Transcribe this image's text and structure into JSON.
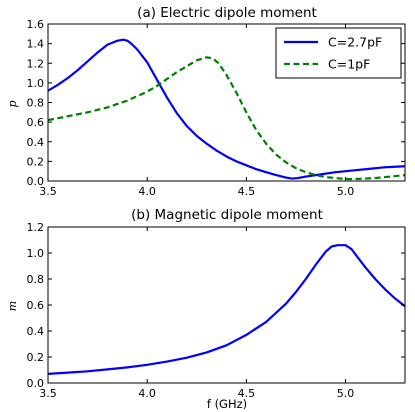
{
  "chart_data": [
    {
      "type": "line",
      "title": "(a) Electric dipole moment",
      "xlabel": "",
      "ylabel": "p",
      "xlim": [
        3.5,
        5.3
      ],
      "ylim": [
        0.0,
        1.6
      ],
      "xticks": [
        "3.5",
        "4.0",
        "4.5",
        "5.0"
      ],
      "yticks": [
        "0.0",
        "0.2",
        "0.4",
        "0.6",
        "0.8",
        "1.0",
        "1.2",
        "1.4",
        "1.6"
      ],
      "grid": false,
      "legend": "top-right",
      "series": [
        {
          "name": "C=2.7pF",
          "color": "#0000ff",
          "style": "solid",
          "x": [
            3.5,
            3.55,
            3.6,
            3.65,
            3.7,
            3.75,
            3.8,
            3.85,
            3.88,
            3.9,
            3.92,
            3.95,
            4.0,
            4.05,
            4.1,
            4.15,
            4.2,
            4.25,
            4.3,
            4.35,
            4.4,
            4.45,
            4.5,
            4.55,
            4.6,
            4.65,
            4.7,
            4.73,
            4.76,
            4.8,
            4.85,
            4.9,
            4.95,
            5.0,
            5.05,
            5.1,
            5.15,
            5.2,
            5.25,
            5.3
          ],
          "y": [
            0.92,
            0.98,
            1.05,
            1.13,
            1.22,
            1.31,
            1.39,
            1.43,
            1.44,
            1.43,
            1.4,
            1.34,
            1.21,
            1.03,
            0.85,
            0.69,
            0.56,
            0.46,
            0.38,
            0.31,
            0.25,
            0.2,
            0.16,
            0.12,
            0.09,
            0.06,
            0.035,
            0.025,
            0.03,
            0.045,
            0.06,
            0.075,
            0.09,
            0.1,
            0.11,
            0.12,
            0.13,
            0.14,
            0.145,
            0.15
          ]
        },
        {
          "name": "C=1pF",
          "color": "#008000",
          "style": "dashed",
          "x": [
            3.5,
            3.6,
            3.7,
            3.8,
            3.9,
            4.0,
            4.05,
            4.1,
            4.15,
            4.2,
            4.25,
            4.3,
            4.33,
            4.36,
            4.4,
            4.45,
            4.5,
            4.55,
            4.6,
            4.65,
            4.7,
            4.75,
            4.8,
            4.85,
            4.9,
            4.95,
            5.0,
            5.05,
            5.1,
            5.15,
            5.2,
            5.25,
            5.3
          ],
          "y": [
            0.62,
            0.66,
            0.7,
            0.75,
            0.82,
            0.91,
            0.97,
            1.04,
            1.11,
            1.17,
            1.23,
            1.26,
            1.25,
            1.2,
            1.08,
            0.9,
            0.7,
            0.52,
            0.38,
            0.27,
            0.19,
            0.13,
            0.09,
            0.06,
            0.04,
            0.03,
            0.02,
            0.02,
            0.025,
            0.03,
            0.04,
            0.05,
            0.06
          ]
        }
      ]
    },
    {
      "type": "line",
      "title": "(b) Magnetic dipole moment",
      "xlabel": "f (GHz)",
      "ylabel": "m",
      "xlim": [
        3.5,
        5.3
      ],
      "ylim": [
        0.0,
        1.2
      ],
      "xticks": [
        "3.5",
        "4.0",
        "4.5",
        "5.0"
      ],
      "yticks": [
        "0.0",
        "0.2",
        "0.4",
        "0.6",
        "0.8",
        "1.0",
        "1.2"
      ],
      "grid": false,
      "legend": "none",
      "series": [
        {
          "color": "#0000ff",
          "style": "solid",
          "x": [
            3.5,
            3.6,
            3.7,
            3.8,
            3.9,
            4.0,
            4.1,
            4.2,
            4.3,
            4.4,
            4.5,
            4.6,
            4.7,
            4.75,
            4.8,
            4.85,
            4.9,
            4.93,
            4.96,
            5.0,
            5.03,
            5.06,
            5.1,
            5.15,
            5.2,
            5.25,
            5.3
          ],
          "y": [
            0.07,
            0.08,
            0.09,
            0.105,
            0.12,
            0.14,
            0.165,
            0.195,
            0.235,
            0.29,
            0.37,
            0.47,
            0.61,
            0.7,
            0.8,
            0.91,
            1.01,
            1.05,
            1.06,
            1.06,
            1.03,
            0.97,
            0.89,
            0.8,
            0.72,
            0.65,
            0.59
          ]
        }
      ]
    }
  ]
}
